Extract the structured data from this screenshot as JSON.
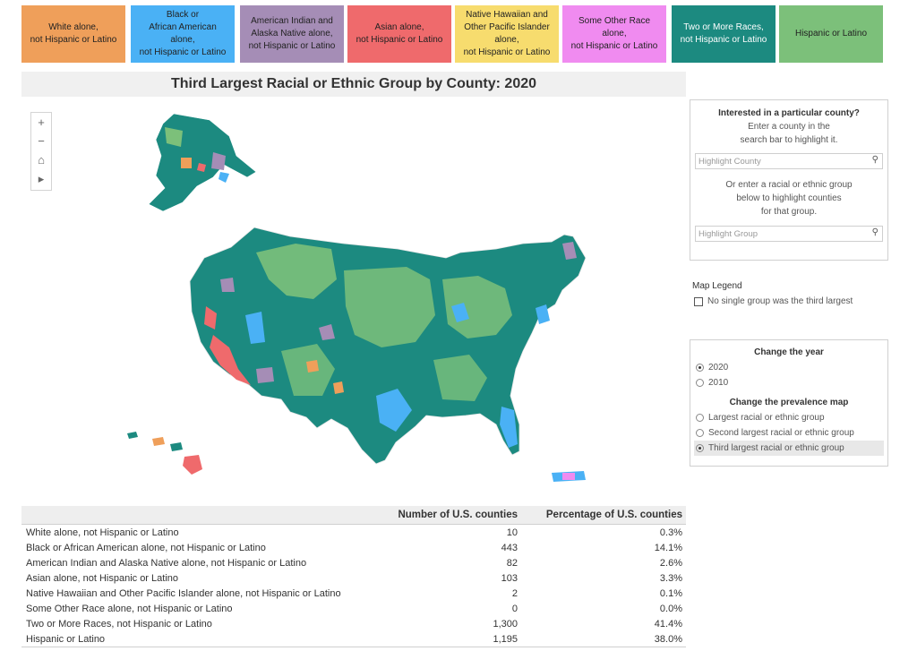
{
  "colors": {
    "white": "#EF9F5A",
    "black": "#4AB1F5",
    "aian": "#A58DB6",
    "asian": "#EF6A6C",
    "nhpi": "#F7DC6E",
    "other": "#F08BF0",
    "two_or_more": "#1C8A80",
    "hispanic": "#7CC07A"
  },
  "legend_tiles": [
    {
      "label": "White alone,\nnot Hispanic or Latino",
      "color_key": "white"
    },
    {
      "label": "Black or\nAfrican American\nalone,\nnot Hispanic or Latino",
      "color_key": "black"
    },
    {
      "label": "American Indian and\nAlaska Native alone,\nnot Hispanic or Latino",
      "color_key": "aian"
    },
    {
      "label": "Asian alone,\nnot Hispanic or Latino",
      "color_key": "asian"
    },
    {
      "label": "Native Hawaiian and\nOther Pacific Islander\nalone,\nnot Hispanic or Latino",
      "color_key": "nhpi"
    },
    {
      "label": "Some Other Race\nalone,\nnot Hispanic or Latino",
      "color_key": "other"
    },
    {
      "label": "Two or More Races,\nnot Hispanic or Latino",
      "color_key": "two_or_more"
    },
    {
      "label": "Hispanic or Latino",
      "color_key": "hispanic"
    }
  ],
  "title": "Third Largest Racial or Ethnic Group by County: 2020",
  "map_tools": {
    "zoom_in": "+",
    "zoom_out": "−",
    "home": "⌂",
    "play": "▸"
  },
  "search_panel": {
    "title": "Interested in a particular county?",
    "county_instructions": "Enter a county in the\nsearch bar to highlight it.",
    "county_placeholder": "Highlight County",
    "group_instructions": "Or enter a racial or ethnic group\nbelow to highlight counties\nfor that group.",
    "group_placeholder": "Highlight Group"
  },
  "map_legend": {
    "title": "Map Legend",
    "no_single_group": "No single group was the third largest"
  },
  "year_panel": {
    "year_title": "Change the year",
    "years": [
      "2020",
      "2010"
    ],
    "selected_year": "2020",
    "prevalence_title": "Change the prevalence map",
    "prevalence_options": [
      "Largest racial or ethnic group",
      "Second largest racial or ethnic group",
      "Third largest racial or ethnic group"
    ],
    "selected_prevalence": "Third largest racial or ethnic group"
  },
  "table": {
    "headers": [
      "",
      "Number of U.S. counties",
      "Percentage of U.S. counties"
    ],
    "rows": [
      [
        "White alone, not Hispanic or Latino",
        "10",
        "0.3%"
      ],
      [
        "Black or African American alone, not Hispanic or Latino",
        "443",
        "14.1%"
      ],
      [
        "American Indian and Alaska Native alone, not Hispanic or Latino",
        "82",
        "2.6%"
      ],
      [
        "Asian alone, not Hispanic or Latino",
        "103",
        "3.3%"
      ],
      [
        "Native Hawaiian and Other Pacific Islander alone, not Hispanic or Latino",
        "2",
        "0.1%"
      ],
      [
        "Some Other Race alone, not Hispanic or Latino",
        "0",
        "0.0%"
      ],
      [
        "Two or More Races, not Hispanic or Latino",
        "1,300",
        "41.4%"
      ],
      [
        "Hispanic or Latino",
        "1,195",
        "38.0%"
      ]
    ]
  }
}
